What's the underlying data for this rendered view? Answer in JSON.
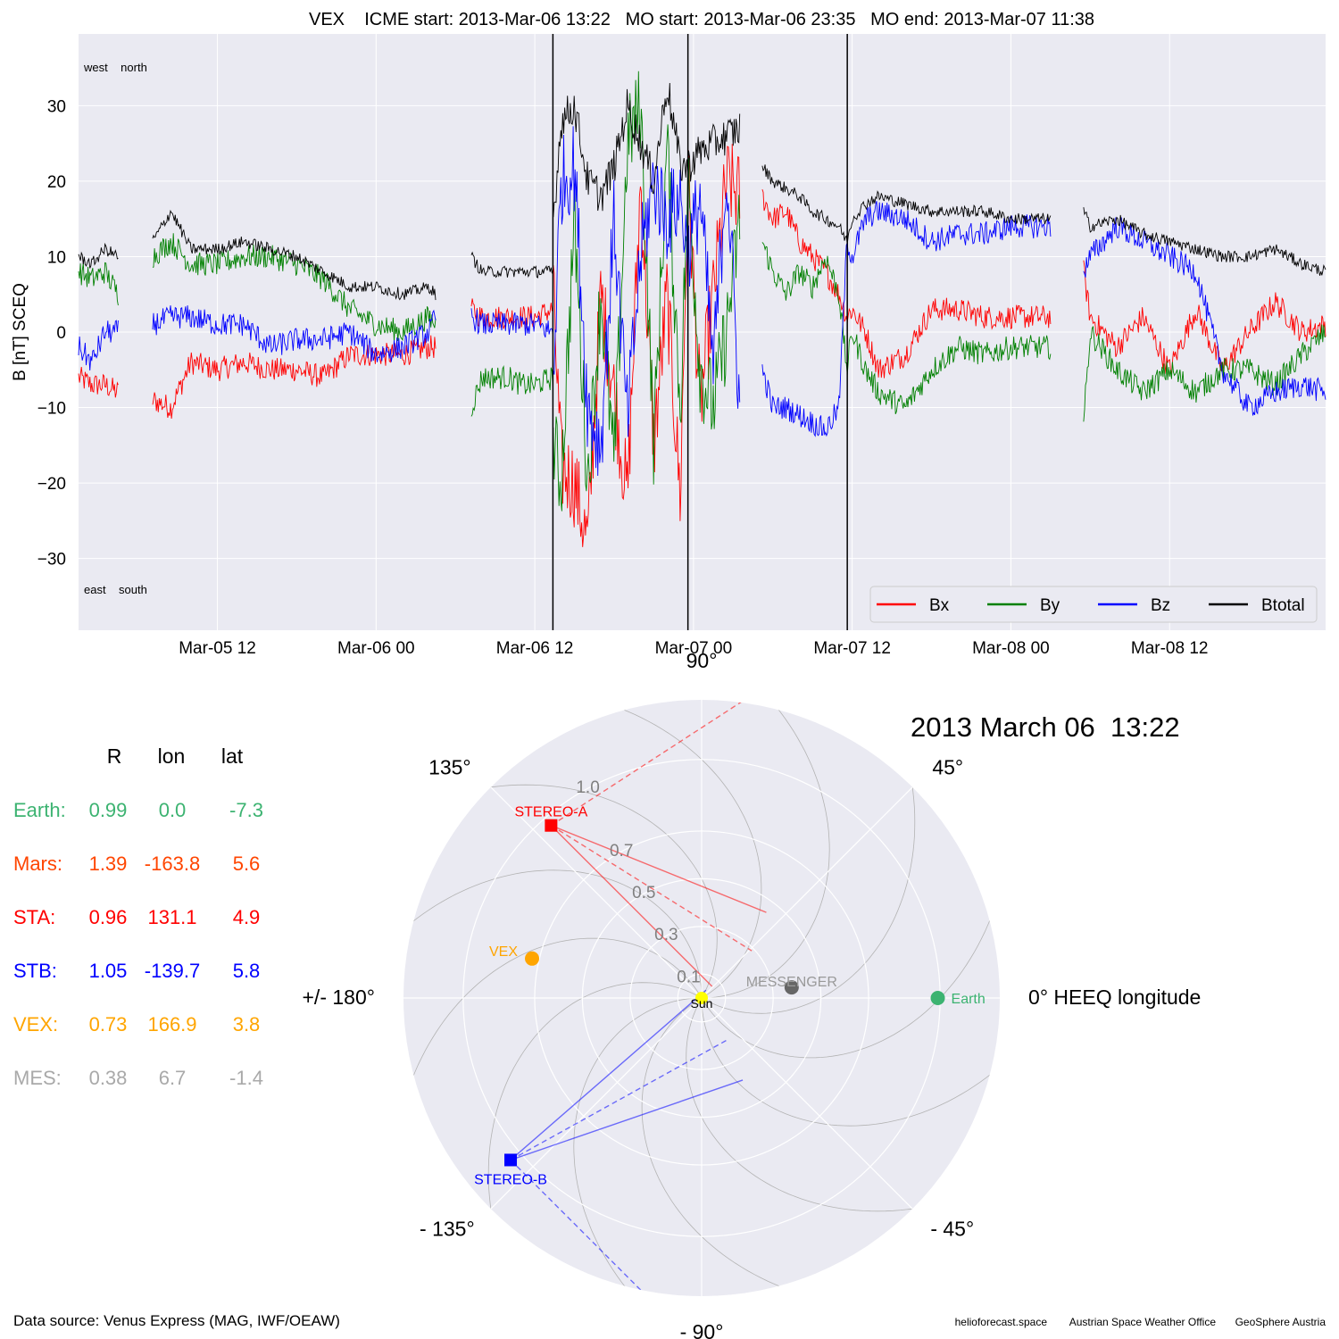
{
  "header": {
    "title": "VEX    ICME start: 2013-Mar-06 13:22   MO start: 2013-Mar-06 23:35   MO end: 2013-Mar-07 11:38"
  },
  "chart_data": [
    {
      "type": "line",
      "title": "VEX    ICME start: 2013-Mar-06 13:22   MO start: 2013-Mar-06 23:35   MO end: 2013-Mar-07 11:38",
      "ylabel": "B [nT] SCEQ",
      "xlabel": "",
      "x_unit": "hours since 2013-03-05 00:00",
      "xlim": [
        1.5,
        95.8
      ],
      "ylim": [
        -39.5,
        39.5
      ],
      "yticks": [
        -30,
        -20,
        -10,
        0,
        10,
        20,
        30
      ],
      "ytick_labels": [
        "−30",
        "−20",
        "−10",
        "0",
        "10",
        "20",
        "30"
      ],
      "xticks": [
        12,
        24,
        36,
        48,
        60,
        72,
        84
      ],
      "xtick_labels": [
        "Mar-05 12",
        "Mar-06 00",
        "Mar-06 12",
        "Mar-07 00",
        "Mar-07 12",
        "Mar-08 00",
        "Mar-08 12"
      ],
      "grid": true,
      "annotations": {
        "top_left": "west    north",
        "bottom_left": "east    south"
      },
      "legend": {
        "placement": "bottom-right",
        "entries": [
          {
            "name": "Bx",
            "color": "#ff0000"
          },
          {
            "name": "By",
            "color": "#008000"
          },
          {
            "name": "Bz",
            "color": "#0000ff"
          },
          {
            "name": "Btotal",
            "color": "#000000"
          }
        ]
      },
      "vlines": [
        {
          "label": "ICME start",
          "x": 37.37
        },
        {
          "label": "MO start",
          "x": 47.58
        },
        {
          "label": "MO end",
          "x": 59.63
        }
      ],
      "segments": [
        {
          "x": [
            1.5,
            2.5,
            3.5,
            4.5,
            4.5
          ],
          "Bx": [
            -6,
            -7,
            -7,
            -8,
            -8
          ],
          "By": [
            8,
            7,
            8,
            5,
            5
          ],
          "Bz": [
            -2,
            -4,
            0,
            0,
            0
          ],
          "Btotal": [
            10,
            9,
            11,
            10,
            10
          ]
        },
        {
          "x": [
            7.1,
            8.5,
            10,
            12,
            14,
            16,
            18,
            20,
            22,
            24,
            26,
            28,
            28.5
          ],
          "Bx": [
            -9,
            -10,
            -4,
            -5,
            -4,
            -5,
            -5,
            -6,
            -3,
            -3,
            -3,
            -2,
            -2
          ],
          "By": [
            10,
            12,
            9,
            9,
            10,
            10,
            9,
            7,
            3,
            1,
            0,
            2,
            1
          ],
          "Bz": [
            1,
            2,
            2,
            1,
            1,
            -2,
            -1,
            -1,
            0,
            -3,
            -2,
            0,
            2
          ],
          "Btotal": [
            12,
            16,
            11,
            11,
            12,
            11,
            10,
            8,
            6,
            6,
            5,
            6,
            5
          ]
        },
        {
          "x": [
            31.2,
            32,
            34,
            35,
            36,
            37.37
          ],
          "Bx": [
            3,
            2,
            2,
            2,
            2,
            3
          ],
          "By": [
            -10,
            -6,
            -6,
            -7,
            -7,
            -6
          ],
          "Bz": [
            2,
            1,
            1,
            1,
            1,
            0
          ],
          "Btotal": [
            10,
            8,
            8,
            8,
            8,
            8
          ]
        },
        {
          "x": [
            37.4,
            38,
            39,
            40,
            41,
            42,
            43,
            44,
            45,
            46,
            47,
            47.6,
            48.5,
            49.5,
            50.5,
            51.5
          ],
          "Bx": [
            5,
            -18,
            -20,
            -28,
            5,
            -8,
            -22,
            20,
            -15,
            5,
            -22,
            20,
            -10,
            5,
            20,
            18
          ],
          "By": [
            -15,
            -20,
            15,
            -20,
            5,
            -18,
            25,
            30,
            -15,
            25,
            -10,
            20,
            -5,
            -10,
            0,
            15
          ],
          "Bz": [
            -5,
            20,
            22,
            -10,
            -15,
            15,
            -12,
            10,
            20,
            15,
            18,
            10,
            18,
            -5,
            22,
            -10
          ],
          "Btotal": [
            15,
            28,
            30,
            20,
            18,
            22,
            30,
            25,
            20,
            33,
            22,
            22,
            24,
            25,
            26,
            27
          ]
        },
        {
          "x": [
            53.2,
            54,
            55,
            56,
            57,
            58,
            59,
            59.6,
            60,
            61,
            62,
            64,
            66,
            68,
            70,
            72,
            74,
            75
          ],
          "Bx": [
            18,
            15,
            16,
            12,
            10,
            8,
            5,
            2,
            3,
            0,
            -5,
            -3,
            3,
            3,
            2,
            2,
            2,
            2
          ],
          "By": [
            12,
            8,
            5,
            8,
            6,
            10,
            5,
            -5,
            0,
            -5,
            -8,
            -10,
            -5,
            -2,
            -3,
            -2,
            -2,
            -2
          ],
          "Bz": [
            -5,
            -10,
            -10,
            -11,
            -12,
            -13,
            -10,
            12,
            10,
            15,
            16,
            15,
            12,
            13,
            13,
            14,
            14,
            14
          ],
          "Btotal": [
            22,
            20,
            19,
            18,
            16,
            15,
            14,
            12,
            15,
            17,
            18,
            17,
            16,
            16,
            16,
            15,
            15,
            15
          ]
        },
        {
          "x": [
            77.5,
            78,
            80,
            82,
            84,
            86,
            88,
            90,
            92,
            94,
            95.8
          ],
          "Bx": [
            8,
            2,
            -2,
            2,
            -5,
            3,
            -5,
            0,
            4,
            0,
            1
          ],
          "By": [
            -12,
            0,
            -5,
            -8,
            -5,
            -8,
            -5,
            -5,
            -7,
            -3,
            0
          ],
          "Bz": [
            8,
            10,
            14,
            12,
            10,
            8,
            -5,
            -10,
            -8,
            -7,
            -8
          ],
          "Btotal": [
            16,
            14,
            15,
            13,
            12,
            11,
            10,
            10,
            11,
            9,
            8
          ]
        }
      ]
    },
    {
      "type": "polar",
      "title": "2013 March 06  13:22",
      "angle_labels": [
        "0° HEEQ longitude",
        "45°",
        "90°",
        "135°",
        "+/- 180°",
        "- 135°",
        "- 90°",
        "- 45°"
      ],
      "radial_ticks": [
        0.1,
        0.3,
        0.5,
        0.7,
        1.0
      ],
      "radial_tick_labels": [
        "0.1",
        "0.3",
        "0.5",
        "0.7",
        "1.0"
      ],
      "rmax": 1.25,
      "bodies": [
        {
          "name": "Sun",
          "r": 0.0,
          "lon": 0.0,
          "color": "#ffff00",
          "marker": "circle"
        },
        {
          "name": "Earth",
          "r": 0.99,
          "lon": 0.0,
          "color": "#3cb371",
          "marker": "circle"
        },
        {
          "name": "VEX",
          "r": 0.73,
          "lon": 166.9,
          "color": "#ffa500",
          "marker": "circle"
        },
        {
          "name": "MESSENGER",
          "r": 0.38,
          "lon": 6.7,
          "color": "#666666",
          "marker": "circle"
        },
        {
          "name": "STEREO-A",
          "r": 0.96,
          "lon": 131.1,
          "color": "#ff0000",
          "marker": "square"
        },
        {
          "name": "STEREO-B",
          "r": 1.05,
          "lon": -139.7,
          "color": "#0000ff",
          "marker": "square"
        }
      ]
    }
  ],
  "position_table": {
    "headers": [
      "R",
      "lon",
      "lat"
    ],
    "rows": [
      {
        "label": "Earth:",
        "R": "0.99",
        "lon": "0.0",
        "lat": "-7.3",
        "color": "#3cb371"
      },
      {
        "label": "Mars:",
        "R": "1.39",
        "lon": "-163.8",
        "lat": "5.6",
        "color": "#ff4500"
      },
      {
        "label": "STA:",
        "R": "0.96",
        "lon": "131.1",
        "lat": "4.9",
        "color": "#ff0000"
      },
      {
        "label": "STB:",
        "R": "1.05",
        "lon": "-139.7",
        "lat": "5.8",
        "color": "#0000ff"
      },
      {
        "label": "VEX:",
        "R": "0.73",
        "lon": "166.9",
        "lat": "3.8",
        "color": "#ffa500"
      },
      {
        "label": "MES:",
        "R": "0.38",
        "lon": "6.7",
        "lat": "-1.4",
        "color": "#a9a9a9"
      }
    ]
  },
  "footer": {
    "data_source": "Data source: Venus Express (MAG, IWF/OEAW)",
    "credits": [
      "helioforecast.space",
      "Austrian Space Weather Office",
      "GeoSphere Austria"
    ]
  }
}
